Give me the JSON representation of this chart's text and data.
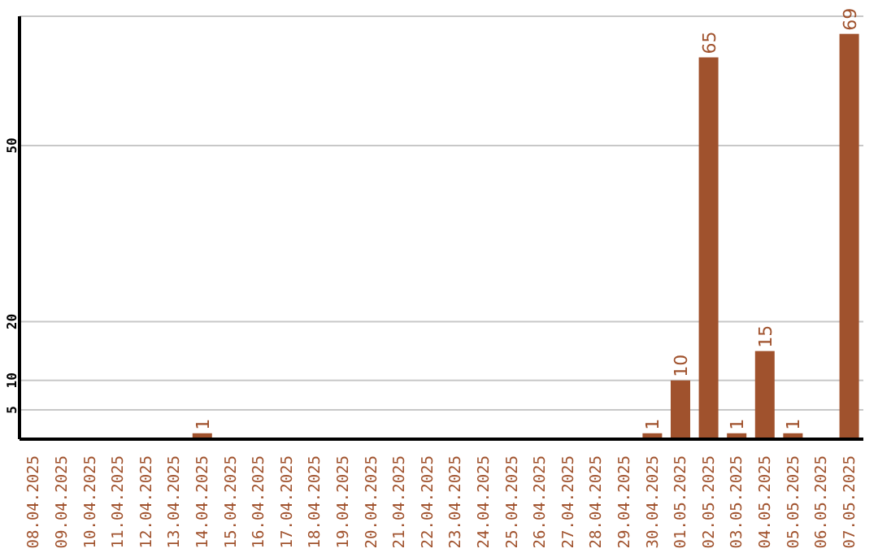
{
  "chart_data": {
    "type": "bar",
    "categories": [
      "08.04.2025",
      "09.04.2025",
      "10.04.2025",
      "11.04.2025",
      "12.04.2025",
      "13.04.2025",
      "14.04.2025",
      "15.04.2025",
      "16.04.2025",
      "17.04.2025",
      "18.04.2025",
      "19.04.2025",
      "20.04.2025",
      "21.04.2025",
      "22.04.2025",
      "23.04.2025",
      "24.04.2025",
      "25.04.2025",
      "26.04.2025",
      "27.04.2025",
      "28.04.2025",
      "29.04.2025",
      "30.04.2025",
      "01.05.2025",
      "02.05.2025",
      "03.05.2025",
      "04.05.2025",
      "05.05.2025",
      "06.05.2025",
      "07.05.2025"
    ],
    "values": [
      0,
      0,
      0,
      0,
      0,
      0,
      1,
      0,
      0,
      0,
      0,
      0,
      0,
      0,
      0,
      0,
      0,
      0,
      0,
      0,
      0,
      0,
      1,
      10,
      65,
      1,
      15,
      1,
      0,
      69
    ],
    "value_labels": [
      null,
      null,
      null,
      null,
      null,
      null,
      "1",
      null,
      null,
      null,
      null,
      null,
      null,
      null,
      null,
      null,
      null,
      null,
      null,
      null,
      null,
      null,
      "1",
      "10",
      "65",
      "1",
      "15",
      "1",
      null,
      "69"
    ],
    "color": "#a0522d",
    "ylim": [
      0,
      72
    ],
    "yticks": [
      5,
      10,
      20,
      50
    ],
    "grid": "y"
  }
}
